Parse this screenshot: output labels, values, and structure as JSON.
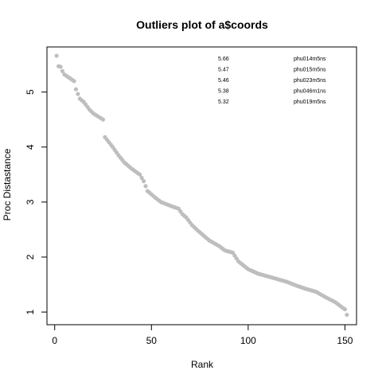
{
  "chart_data": {
    "type": "scatter",
    "title": "Outliers plot of a$coords",
    "xlabel": "Rank",
    "ylabel": "Proc Distastance",
    "xlim": [
      -4,
      156
    ],
    "ylim": [
      0.77,
      5.82
    ],
    "x_ticks": [
      0,
      50,
      100,
      150
    ],
    "y_ticks": [
      1,
      2,
      3,
      4,
      5
    ],
    "grid": false,
    "legend": "none",
    "point_color": "#bebebe",
    "knots": [
      [
        1,
        5.66
      ],
      [
        2,
        5.47
      ],
      [
        3,
        5.46
      ],
      [
        4,
        5.38
      ],
      [
        5,
        5.32
      ],
      [
        10,
        5.2
      ],
      [
        11,
        5.05
      ],
      [
        13,
        4.88
      ],
      [
        15,
        4.82
      ],
      [
        18,
        4.68
      ],
      [
        20,
        4.61
      ],
      [
        25,
        4.5
      ],
      [
        26,
        4.18
      ],
      [
        30,
        4.0
      ],
      [
        33,
        3.85
      ],
      [
        36,
        3.72
      ],
      [
        40,
        3.6
      ],
      [
        44,
        3.5
      ],
      [
        46,
        3.38
      ],
      [
        48,
        3.2
      ],
      [
        52,
        3.08
      ],
      [
        55,
        3.0
      ],
      [
        60,
        2.93
      ],
      [
        64,
        2.88
      ],
      [
        66,
        2.78
      ],
      [
        68,
        2.72
      ],
      [
        71,
        2.58
      ],
      [
        74,
        2.48
      ],
      [
        80,
        2.3
      ],
      [
        85,
        2.2
      ],
      [
        88,
        2.12
      ],
      [
        92,
        2.08
      ],
      [
        95,
        1.92
      ],
      [
        100,
        1.78
      ],
      [
        105,
        1.7
      ],
      [
        115,
        1.6
      ],
      [
        120,
        1.55
      ],
      [
        125,
        1.48
      ],
      [
        130,
        1.42
      ],
      [
        135,
        1.37
      ],
      [
        140,
        1.27
      ],
      [
        145,
        1.18
      ],
      [
        148,
        1.1
      ],
      [
        150,
        1.05
      ],
      [
        151,
        0.95
      ]
    ],
    "n_points": 151,
    "annotations": [
      {
        "value": "5.66",
        "id": "phu014m5ns"
      },
      {
        "value": "5.47",
        "id": "phu015m5ns"
      },
      {
        "value": "5.46",
        "id": "phu023m5ns"
      },
      {
        "value": "5.38",
        "id": "phu046m1ns"
      },
      {
        "value": "5.32",
        "id": "phu019m5ns"
      }
    ]
  }
}
